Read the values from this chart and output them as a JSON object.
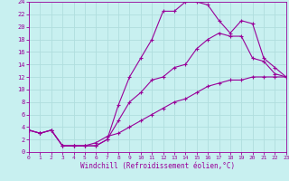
{
  "xlabel": "Windchill (Refroidissement éolien,°C)",
  "bg_color": "#c8f0f0",
  "line_color": "#990099",
  "grid_color": "#b0dede",
  "xmin": 0,
  "xmax": 23,
  "ymin": 0,
  "ymax": 24,
  "line1_x": [
    0,
    1,
    2,
    3,
    4,
    5,
    6,
    7,
    8,
    9,
    10,
    11,
    12,
    13,
    14,
    15,
    16,
    17,
    18,
    19,
    20,
    21,
    22,
    23
  ],
  "line1_y": [
    3.5,
    3.0,
    3.5,
    1.0,
    1.0,
    1.0,
    1.0,
    2.0,
    7.5,
    12.0,
    15.0,
    18.0,
    22.5,
    22.5,
    24.0,
    24.0,
    23.5,
    21.0,
    19.0,
    21.0,
    20.5,
    15.0,
    13.5,
    12.0
  ],
  "line2_x": [
    0,
    1,
    2,
    3,
    4,
    5,
    6,
    7,
    8,
    9,
    10,
    11,
    12,
    13,
    14,
    15,
    16,
    17,
    18,
    19,
    20,
    21,
    22,
    23
  ],
  "line2_y": [
    3.5,
    3.0,
    3.5,
    1.0,
    1.0,
    1.0,
    1.0,
    2.0,
    5.0,
    8.0,
    9.5,
    11.5,
    12.0,
    13.5,
    14.0,
    16.5,
    18.0,
    19.0,
    18.5,
    18.5,
    15.0,
    14.5,
    12.5,
    12.0
  ],
  "line3_x": [
    0,
    1,
    2,
    3,
    4,
    5,
    6,
    7,
    8,
    9,
    10,
    11,
    12,
    13,
    14,
    15,
    16,
    17,
    18,
    19,
    20,
    21,
    22,
    23
  ],
  "line3_y": [
    3.5,
    3.0,
    3.5,
    1.0,
    1.0,
    1.0,
    1.5,
    2.5,
    3.0,
    4.0,
    5.0,
    6.0,
    7.0,
    8.0,
    8.5,
    9.5,
    10.5,
    11.0,
    11.5,
    11.5,
    12.0,
    12.0,
    12.0,
    12.0
  ]
}
